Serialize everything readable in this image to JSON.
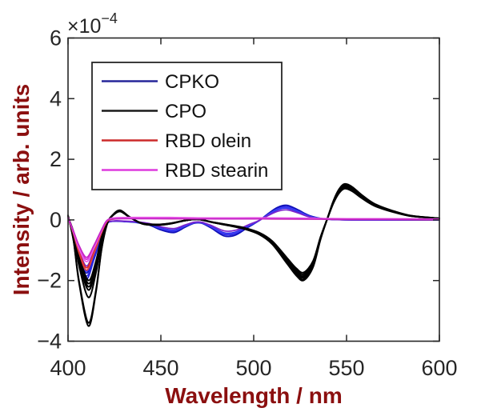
{
  "figure": {
    "background": "#ffffff",
    "frame_color": "#262626",
    "axis_label_color": "#8B0F0F"
  },
  "chart_data": {
    "type": "line",
    "title": "",
    "xlabel": "Wavelength / nm",
    "ylabel": "Intensity / arb. units",
    "offset_text": {
      "base": "×10",
      "exp": "−4"
    },
    "y_unit_scale": 0.0001,
    "xlim": [
      400,
      600
    ],
    "ylim_e4": [
      -4,
      6
    ],
    "grid": false,
    "x_ticks": [
      400,
      450,
      500,
      550,
      600
    ],
    "x_tick_labels": [
      "400",
      "450",
      "500",
      "550",
      "600"
    ],
    "y_ticks_e4": [
      -4,
      -2,
      0,
      2,
      4,
      6
    ],
    "y_tick_labels": [
      "−4",
      "−2",
      "0",
      "2",
      "4",
      "6"
    ],
    "legend": {
      "position": "upper-left",
      "items": [
        {
          "label": "CPKO",
          "color": "#26269A"
        },
        {
          "label": "CPO",
          "color": "#1A1A1A"
        },
        {
          "label": "RBD olein",
          "color": "#CC2A2A"
        },
        {
          "label": "RBD stearin",
          "color": "#DD3ADD"
        }
      ]
    },
    "series": [
      {
        "name": "CPKO",
        "width": 1.7,
        "colors": [
          "#1C1CD2",
          "#2B2BE8",
          "#1111B8",
          "#3D3DF5",
          "#7B22CC"
        ],
        "x": [
          400,
          403,
          406,
          410,
          414,
          418,
          421,
          425,
          430,
          437,
          444,
          450,
          457,
          463,
          468,
          472,
          477,
          484,
          490,
          497,
          503,
          508,
          513,
          518,
          524,
          530,
          537,
          545,
          560,
          600
        ],
        "base_e4": [
          0.1,
          -0.5,
          -1.3,
          -1.95,
          -1.3,
          -0.55,
          -0.12,
          -0.04,
          -0.05,
          -0.08,
          -0.16,
          -0.3,
          -0.38,
          -0.22,
          -0.1,
          -0.1,
          -0.24,
          -0.48,
          -0.46,
          -0.22,
          -0.02,
          0.2,
          0.38,
          0.44,
          0.3,
          0.13,
          0.04,
          0.01,
          0.0,
          0.0
        ],
        "replicates": [
          {
            "dip": 1.0,
            "mid": 1.0
          },
          {
            "dip": 0.95,
            "mid": 0.88
          },
          {
            "dip": 0.9,
            "mid": 1.1
          },
          {
            "dip": 0.87,
            "mid": 0.95
          },
          {
            "dip": 0.78,
            "mid": 0.75
          }
        ]
      },
      {
        "name": "CPO",
        "width": 2.0,
        "colors": [
          "#000000"
        ],
        "x": [
          400,
          403,
          406,
          411,
          415,
          418,
          421,
          424,
          428,
          433,
          440,
          448,
          455,
          463,
          470,
          478,
          487,
          495,
          503,
          510,
          518,
          523,
          527,
          532,
          536,
          540,
          543,
          546,
          549,
          553,
          558,
          565,
          575,
          585,
          600
        ],
        "base_e4": [
          0.15,
          -0.7,
          -2.1,
          -3.5,
          -2.4,
          -1.0,
          -0.15,
          0.15,
          0.3,
          0.1,
          -0.12,
          -0.16,
          -0.12,
          -0.02,
          0.02,
          -0.08,
          -0.18,
          -0.28,
          -0.45,
          -0.75,
          -1.35,
          -1.72,
          -1.86,
          -1.45,
          -0.6,
          0.1,
          0.6,
          0.95,
          1.11,
          1.02,
          0.78,
          0.5,
          0.28,
          0.13,
          0.05
        ],
        "replicates": [
          {
            "dip": 1.0,
            "mid": 1.0
          },
          {
            "dip": 0.97,
            "mid": 1.05
          },
          {
            "dip": 0.73,
            "mid": 0.96
          },
          {
            "dip": 0.66,
            "mid": 1.02
          },
          {
            "dip": 0.63,
            "mid": 0.93
          },
          {
            "dip": 0.6,
            "mid": 1.07
          },
          {
            "dip": 0.57,
            "mid": 0.99
          }
        ]
      },
      {
        "name": "RBD olein",
        "width": 1.7,
        "colors": [
          "#CE2929",
          "#E23C3C"
        ],
        "x": [
          400,
          403,
          406,
          410,
          414,
          418,
          421,
          425,
          432,
          440,
          455,
          470,
          490,
          510,
          530,
          550,
          570,
          600
        ],
        "base_e4": [
          0.08,
          -0.45,
          -1.05,
          -1.58,
          -1.05,
          -0.42,
          -0.05,
          0.03,
          0.05,
          0.05,
          0.04,
          0.04,
          0.04,
          0.03,
          0.03,
          0.02,
          0.02,
          0.01
        ],
        "replicates": [
          {
            "dip": 1.0,
            "mid": 1.0
          },
          {
            "dip": 1.05,
            "mid": 1.3
          }
        ]
      },
      {
        "name": "RBD stearin",
        "width": 1.8,
        "colors": [
          "#DA35DA",
          "#EA5CEA",
          "#C525C5"
        ],
        "x": [
          400,
          403,
          406,
          410,
          414,
          418,
          421,
          425,
          432,
          440,
          455,
          470,
          490,
          510,
          530,
          550,
          570,
          600
        ],
        "base_e4": [
          0.08,
          -0.4,
          -0.9,
          -1.3,
          -0.88,
          -0.35,
          -0.02,
          0.05,
          0.06,
          0.06,
          0.06,
          0.05,
          0.05,
          0.05,
          0.04,
          0.03,
          0.03,
          0.02
        ],
        "replicates": [
          {
            "dip": 1.0,
            "mid": 1.0
          },
          {
            "dip": 1.06,
            "mid": 1.35
          },
          {
            "dip": 0.95,
            "mid": 0.7
          }
        ]
      }
    ]
  }
}
